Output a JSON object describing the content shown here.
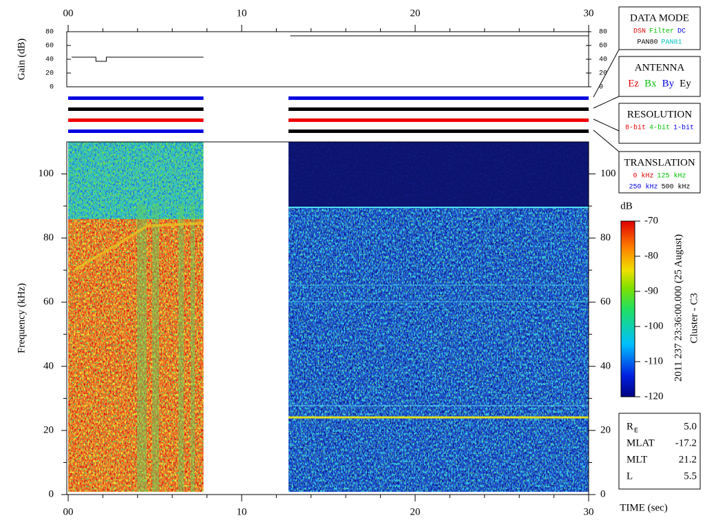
{
  "chart_data": [
    {
      "type": "line",
      "ylabel": "Gain (dB)",
      "xlim": [
        0,
        30
      ],
      "ylim": [
        0,
        80
      ],
      "yticks": [
        0,
        20,
        40,
        60,
        80
      ],
      "xticks": [
        {
          "value": 0,
          "label": "00"
        },
        10,
        20,
        30
      ],
      "xminorticks": [
        2,
        4,
        6,
        8,
        12,
        14,
        16,
        18,
        22,
        24,
        26,
        28
      ],
      "x": [
        0.2,
        1.6,
        1.6,
        2.2,
        2.2,
        7.8,
        10,
        12.8,
        30
      ],
      "values": [
        43,
        43,
        37,
        37,
        43,
        43,
        null,
        74,
        74
      ],
      "color": "#000000"
    },
    {
      "type": "spectrogram",
      "ylabel": "Frequency (kHz)",
      "xlabel": "TIME (sec)",
      "xlim": [
        0,
        30
      ],
      "ylim": [
        0,
        110
      ],
      "yticks": [
        0,
        20,
        40,
        60,
        80,
        100
      ],
      "yminorticks": [
        10,
        30,
        50,
        70,
        90
      ],
      "xticks": [
        {
          "value": 0,
          "label": "00"
        },
        10,
        20,
        30
      ],
      "xminorticks": [
        2,
        4,
        6,
        8,
        12,
        14,
        16,
        18,
        22,
        24,
        26,
        28
      ],
      "coverage": [
        [
          0,
          7.8
        ],
        [
          12.7,
          30
        ]
      ],
      "colorbar": {
        "label": "dB",
        "lim": [
          -120,
          -70
        ],
        "ticks": [
          -70,
          -80,
          -90,
          -100,
          -110,
          -120
        ]
      }
    }
  ],
  "status_rows": [
    {
      "segments": [
        {
          "start": 0,
          "end": 7.8,
          "color": "#0000e0"
        },
        {
          "start": 12.7,
          "end": 30,
          "color": "#0000e0"
        }
      ]
    },
    {
      "segments": [
        {
          "start": 0,
          "end": 7.8,
          "color": "#000000"
        },
        {
          "start": 12.7,
          "end": 30,
          "color": "#000000"
        }
      ]
    },
    {
      "segments": [
        {
          "start": 0,
          "end": 7.8,
          "color": "#f00000"
        },
        {
          "start": 12.7,
          "end": 30,
          "color": "#f00000"
        }
      ]
    },
    {
      "segments": [
        {
          "start": 0,
          "end": 7.8,
          "color": "#0000e0"
        },
        {
          "start": 12.7,
          "end": 30,
          "color": "#000000"
        }
      ]
    }
  ],
  "panels": [
    {
      "title": "DATA MODE",
      "rows": [
        [
          {
            "text": "DSN",
            "color": "#e00000"
          },
          {
            "text": "Filter",
            "color": "#00c000"
          },
          {
            "text": "DC",
            "color": "#0000e0"
          }
        ],
        [
          {
            "text": "PAN80",
            "color": "#000000"
          },
          {
            "text": "PAN81",
            "color": "#00c0c0"
          }
        ]
      ]
    },
    {
      "title": "ANTENNA",
      "rows": [
        [
          {
            "text": "Ez",
            "color": "#e00000"
          },
          {
            "text": "Bx",
            "color": "#00c000"
          },
          {
            "text": "By",
            "color": "#0000e0"
          },
          {
            "text": "Ey",
            "color": "#000000"
          }
        ]
      ]
    },
    {
      "title": "RESOLUTION",
      "rows": [
        [
          {
            "text": "8-bit",
            "color": "#e00000"
          },
          {
            "text": "4-bit",
            "color": "#00c000"
          },
          {
            "text": "1-bit",
            "color": "#0000e0"
          }
        ]
      ]
    },
    {
      "title": "TRANSLATION",
      "rows": [
        [
          {
            "text": "0 kHz",
            "color": "#e00000"
          },
          {
            "text": "125 kHz",
            "color": "#00c000"
          }
        ],
        [
          {
            "text": "250 kHz",
            "color": "#0000e0"
          },
          {
            "text": "500 kHz",
            "color": "#000000"
          }
        ]
      ]
    }
  ],
  "caption": [
    "2011 237 23:36:00.000 (25 August)",
    "Cluster - C3"
  ],
  "orbit": [
    {
      "label": "R",
      "sub": "E",
      "value": "5.0"
    },
    {
      "label": "MLAT",
      "value": "-17.2"
    },
    {
      "label": "MLT",
      "value": "21.2"
    },
    {
      "label": "L",
      "value": "5.5"
    }
  ]
}
